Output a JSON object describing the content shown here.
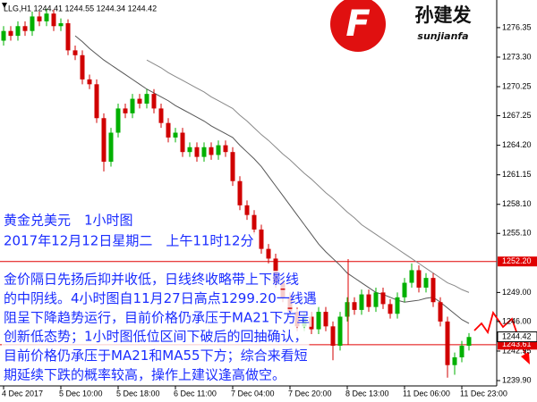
{
  "chart_data": {
    "type": "candlestick",
    "symbol_info": "LLG,H1 1244.41 1244.55 1244.34 1244.42",
    "logo_letter": "F",
    "brand": "孙建发",
    "brand_latin": "sunjianfa",
    "headings": [
      "黄金兑美元　1小时图",
      "2017年12月12日星期二　上午11时12分"
    ],
    "text_lines": [
      "金价隔日先扬后抑并收低，日线终收略带上下影线",
      "的中阴线。4小时图自11月27日高点1299.20一线遇",
      "阻呈下降趋势运行，目前价格仍承压于MA21下方呈",
      "创新低态势；1小时图低位区间下破后的回抽确认，",
      "目前价格仍承压于MA21和MA55下方；综合来看短",
      "期延续下跌的概率较高，操作上建议逢高做空。"
    ],
    "categories": [
      "4 Dec 2017",
      null,
      null,
      null,
      null,
      null,
      null,
      null,
      "5 Dec 10:00",
      null,
      null,
      null,
      null,
      null,
      null,
      null,
      "5 Dec 18:00",
      null,
      null,
      null,
      null,
      null,
      null,
      null,
      "6 Dec 11:00",
      null,
      null,
      null,
      null,
      null,
      null,
      null,
      "7 Dec 04:00",
      null,
      null,
      null,
      null,
      null,
      null,
      null,
      "7 Dec 20:00",
      null,
      null,
      null,
      null,
      null,
      null,
      null,
      "8 Dec 13:00",
      null,
      null,
      null,
      null,
      null,
      null,
      null,
      "11 Dec 06:00",
      null,
      null,
      null,
      null,
      null,
      null,
      null,
      "11 Dec 23:00",
      null
    ],
    "open": [
      1275,
      1276,
      1275.5,
      1276.5,
      1276,
      1277.5,
      1277,
      1277.8,
      1276.5,
      1276.8,
      1274,
      1273.5,
      1271,
      1270.5,
      1267,
      1262.5,
      1265.5,
      1268,
      1267.5,
      1269,
      1268.5,
      1269.5,
      1268,
      1266.5,
      1265,
      1265.5,
      1263.5,
      1264,
      1263,
      1264,
      1263.2,
      1264.2,
      1263.5,
      1260.5,
      1258,
      1257,
      1255.5,
      1253.5,
      1252.5,
      1250,
      1248.5,
      1247,
      1245.5,
      1246.5,
      1245.2,
      1247,
      1245.5,
      1243.5,
      1246.5,
      1248,
      1247.2,
      1248.8,
      1247.5,
      1249,
      1247.8,
      1246.8,
      1248.5,
      1250,
      1251.3,
      1249.5,
      1250.5,
      1248,
      1246,
      1241.5,
      1242.3,
      1243.5
    ],
    "high": [
      1276.5,
      1276.5,
      1277,
      1277,
      1278,
      1278,
      1278.3,
      1278.2,
      1277.3,
      1277.2,
      1274.5,
      1274,
      1271.5,
      1271,
      1267.5,
      1266,
      1268.5,
      1268.5,
      1269.5,
      1269.5,
      1270,
      1270,
      1268.5,
      1267,
      1266,
      1266,
      1264.5,
      1264.5,
      1264.5,
      1264.5,
      1264.7,
      1264.7,
      1264,
      1261,
      1258.5,
      1257.5,
      1256,
      1254,
      1253,
      1250.5,
      1249,
      1247.5,
      1247,
      1247,
      1247.5,
      1247.5,
      1246,
      1247,
      1248.5,
      1248.5,
      1249.3,
      1249.3,
      1249.5,
      1249.5,
      1248.3,
      1249,
      1250.5,
      1252,
      1251.8,
      1251,
      1251,
      1248.5,
      1246.5,
      1242.8,
      1244,
      1244.8
    ],
    "low": [
      1274.5,
      1275,
      1275,
      1275.5,
      1275.5,
      1276.5,
      1276.5,
      1276,
      1276,
      1273.5,
      1273,
      1270.5,
      1270,
      1266.5,
      1261.5,
      1262,
      1265,
      1267,
      1267,
      1268,
      1268,
      1267.5,
      1266,
      1264.5,
      1264.5,
      1263,
      1263,
      1262.5,
      1262.5,
      1262.7,
      1262.7,
      1263,
      1260,
      1257.5,
      1256.5,
      1255,
      1253,
      1252,
      1249.5,
      1248,
      1246.5,
      1245,
      1245,
      1244.7,
      1244.7,
      1245,
      1242,
      1243,
      1246,
      1246.7,
      1246.7,
      1247,
      1247,
      1247.3,
      1246.3,
      1246.3,
      1248,
      1249.5,
      1249,
      1249,
      1247.5,
      1245.5,
      1240.2,
      1240.5,
      1241.8,
      1243
    ],
    "close": [
      1276,
      1275.5,
      1276.5,
      1276,
      1277.5,
      1277,
      1277.8,
      1276.5,
      1276.8,
      1274,
      1273.5,
      1271,
      1270.5,
      1267,
      1262.5,
      1265.5,
      1268,
      1267.5,
      1269,
      1268.5,
      1269.5,
      1268,
      1266.5,
      1265,
      1265.5,
      1263.5,
      1264,
      1263,
      1264,
      1263.2,
      1264.2,
      1263.5,
      1260.5,
      1258,
      1257,
      1255.5,
      1253.5,
      1252.5,
      1250,
      1248.5,
      1247,
      1245.5,
      1246.5,
      1245.2,
      1247,
      1245.5,
      1243.5,
      1246.5,
      1248,
      1247.2,
      1248.8,
      1247.5,
      1249,
      1247.8,
      1246.8,
      1248.5,
      1250,
      1251.3,
      1249.5,
      1250.5,
      1248,
      1246,
      1241.5,
      1242.3,
      1243.5,
      1244.4
    ],
    "up_color": "#00b000",
    "down_color": "#d00000",
    "ma": [
      {
        "color": "#555555",
        "values": [
          null,
          null,
          null,
          null,
          null,
          null,
          null,
          null,
          null,
          null,
          1275.5,
          1274.9,
          1274.2,
          1273.6,
          1273,
          1272.5,
          1272,
          1271.5,
          1271,
          1270.5,
          1270,
          1269.6,
          1269.2,
          1268.8,
          1268.3,
          1267.9,
          1267.5,
          1267.1,
          1266.7,
          1266.2,
          1265.8,
          1265.4,
          1265,
          1264.2,
          1263.5,
          1262.8,
          1262,
          1261,
          1260,
          1259,
          1258,
          1257,
          1256,
          1255,
          1254,
          1253.2,
          1252.5,
          1251.8,
          1251,
          1250.5,
          1250,
          1249.5,
          1249,
          1248.8,
          1248.5,
          1248.2,
          1248,
          1248.1,
          1248.2,
          1248.4,
          1248.5,
          1248,
          1247.4,
          1246.8,
          1246.2,
          1245.8
        ]
      },
      {
        "color": "#888888",
        "values": [
          null,
          null,
          null,
          null,
          null,
          null,
          null,
          null,
          null,
          null,
          null,
          null,
          null,
          null,
          null,
          null,
          null,
          null,
          null,
          null,
          1273,
          1272.6,
          1272.2,
          1271.7,
          1271.3,
          1270.9,
          1270.5,
          1270.1,
          1269.7,
          1269.2,
          1268.8,
          1268.4,
          1268,
          1267.3,
          1266.7,
          1266,
          1265.3,
          1264.7,
          1264,
          1263.3,
          1262.7,
          1262,
          1261.3,
          1260.7,
          1260,
          1259.3,
          1258.7,
          1258,
          1257.3,
          1256.7,
          1256,
          1255.5,
          1255,
          1254.5,
          1254,
          1253.5,
          1253,
          1252.5,
          1252,
          1251.5,
          1251,
          1250.5,
          1250,
          1249.7,
          1249.3,
          1249
        ]
      }
    ],
    "levels": [
      {
        "value": 1252.2,
        "label": "1252.20",
        "color": "#e00000"
      },
      {
        "value": 1243.61,
        "label": "1243.61",
        "color": "#e00000"
      }
    ],
    "last_price": {
      "value": 1244.42,
      "label": "1244.42"
    },
    "ylim": [
      1239.35,
      1279.2
    ],
    "yticks": [
      1276.35,
      {
        "value": 1273.3,
        "label": "1273.30"
      },
      1270.25,
      1267.25,
      {
        "value": 1264.2,
        "label": "1264.20"
      },
      1261.15,
      {
        "value": 1258.1,
        "label": "1258.10"
      },
      {
        "value": 1255.1,
        "label": "1255.10"
      },
      {
        "value": 1249,
        "label": "1249.00"
      },
      {
        "value": 1246,
        "label": "1246.00"
      },
      1242.95,
      {
        "value": 1239.9,
        "label": "1239.90"
      }
    ]
  }
}
